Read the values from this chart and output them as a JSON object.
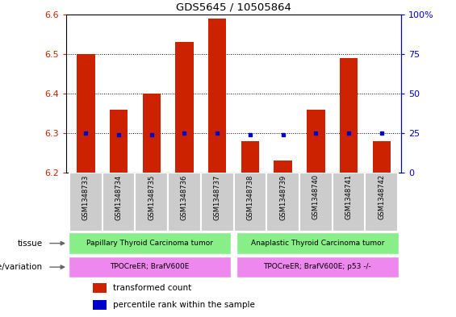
{
  "title": "GDS5645 / 10505864",
  "samples": [
    "GSM1348733",
    "GSM1348734",
    "GSM1348735",
    "GSM1348736",
    "GSM1348737",
    "GSM1348738",
    "GSM1348739",
    "GSM1348740",
    "GSM1348741",
    "GSM1348742"
  ],
  "transformed_count": [
    6.5,
    6.36,
    6.4,
    6.53,
    6.59,
    6.28,
    6.23,
    6.36,
    6.49,
    6.28
  ],
  "percentile_rank": [
    25,
    24,
    24,
    25,
    25,
    24,
    24,
    25,
    25,
    25
  ],
  "ymin": 6.2,
  "ymax": 6.6,
  "yticks": [
    6.2,
    6.3,
    6.4,
    6.5,
    6.6
  ],
  "y2ticks": [
    0,
    25,
    50,
    75,
    100
  ],
  "y2labels": [
    "0",
    "25",
    "50",
    "75",
    "100%"
  ],
  "bar_color": "#cc2200",
  "dot_color": "#0000cc",
  "tissue_groups": [
    {
      "label": "Papillary Thyroid Carcinoma tumor",
      "n": 5,
      "color": "#88ee88"
    },
    {
      "label": "Anaplastic Thyroid Carcinoma tumor",
      "n": 5,
      "color": "#88ee88"
    }
  ],
  "genotype_groups": [
    {
      "label": "TPOCreER; BrafV600E",
      "n": 5,
      "color": "#ee88ee"
    },
    {
      "label": "TPOCreER; BrafV600E; p53 -/-",
      "n": 5,
      "color": "#ee88ee"
    }
  ],
  "tissue_label": "tissue",
  "genotype_label": "genotype/variation",
  "legend_items": [
    {
      "color": "#cc2200",
      "label": "transformed count"
    },
    {
      "color": "#0000cc",
      "label": "percentile rank within the sample"
    }
  ],
  "tick_label_color_left": "#cc2200",
  "tick_label_color_right": "#0000cc",
  "bar_width": 0.55,
  "sample_box_color": "#cccccc",
  "sample_box_edge": "#aaaaaa"
}
